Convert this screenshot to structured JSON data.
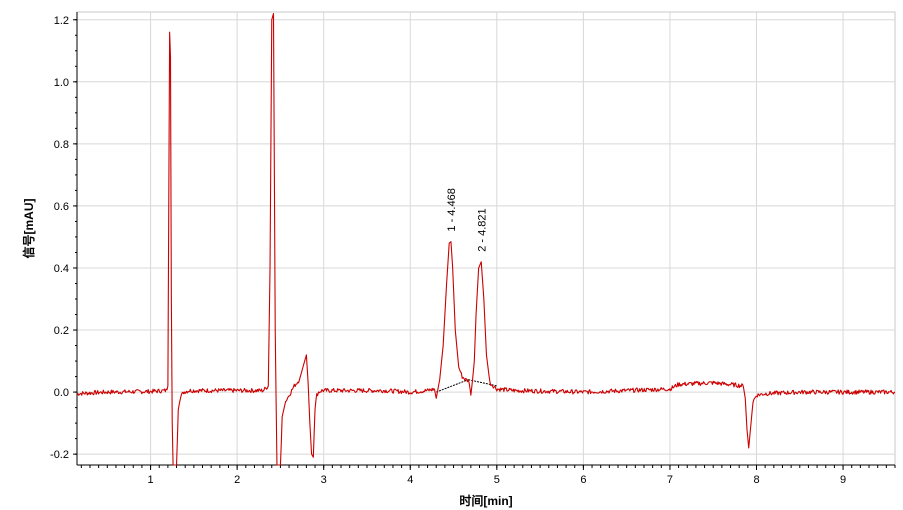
{
  "chart_data": {
    "type": "line",
    "xlabel": "时间[min]",
    "ylabel": "信号[mAU]",
    "xlim": [
      0.15,
      9.6
    ],
    "ylim": [
      -0.235,
      1.225
    ],
    "x_ticks": [
      "1",
      "2",
      "3",
      "4",
      "5",
      "6",
      "7",
      "8",
      "9"
    ],
    "y_ticks": [
      "-0.2",
      "0.0",
      "0.2",
      "0.4",
      "0.6",
      "0.8",
      "1.0",
      "1.2"
    ],
    "grid": true,
    "legend": "none",
    "series": [
      {
        "color": "#cc0000",
        "x": [
          0.15,
          0.5,
          1.0,
          1.18,
          1.2,
          1.22,
          1.23,
          1.24,
          1.25,
          1.26,
          1.27,
          1.28,
          1.3,
          1.32,
          1.34,
          1.36,
          1.38,
          1.45,
          1.6,
          2.0,
          2.3,
          2.36,
          2.38,
          2.4,
          2.42,
          2.44,
          2.46,
          2.48,
          2.5,
          2.52,
          2.56,
          2.6,
          2.66,
          2.72,
          2.78,
          2.8,
          2.82,
          2.84,
          2.86,
          2.88,
          2.9,
          2.92,
          2.94,
          2.98,
          3.05,
          3.3,
          3.7,
          4.0,
          4.2,
          4.28,
          4.3,
          4.34,
          4.38,
          4.42,
          4.45,
          4.47,
          4.49,
          4.52,
          4.56,
          4.6,
          4.64,
          4.68,
          4.7,
          4.72,
          4.74,
          4.76,
          4.79,
          4.82,
          4.85,
          4.88,
          4.92,
          4.96,
          5.0,
          5.2,
          5.6,
          6.0,
          6.5,
          7.0,
          7.1,
          7.5,
          7.85,
          7.87,
          7.89,
          7.91,
          7.93,
          7.96,
          8.0,
          8.1,
          8.5,
          9.0,
          9.6
        ],
        "y": [
          -0.005,
          0.0,
          0.002,
          0.005,
          0.02,
          1.16,
          1.08,
          0.3,
          -0.1,
          -0.25,
          -0.25,
          -0.25,
          -0.25,
          -0.05,
          -0.02,
          -0.01,
          0.0,
          0.005,
          0.005,
          0.005,
          0.005,
          0.02,
          0.4,
          1.2,
          1.22,
          0.2,
          -0.25,
          -0.25,
          -0.25,
          -0.08,
          -0.03,
          -0.01,
          0.02,
          0.04,
          0.1,
          0.12,
          0.03,
          -0.1,
          -0.2,
          -0.21,
          -0.05,
          -0.01,
          0.0,
          0.005,
          0.005,
          0.005,
          0.005,
          0.0,
          0.005,
          0.01,
          -0.02,
          0.04,
          0.15,
          0.35,
          0.48,
          0.485,
          0.4,
          0.2,
          0.08,
          0.05,
          0.04,
          0.035,
          -0.01,
          0.04,
          0.1,
          0.25,
          0.4,
          0.42,
          0.3,
          0.12,
          0.03,
          0.02,
          0.01,
          0.005,
          0.003,
          0.0,
          0.005,
          0.01,
          0.025,
          0.03,
          0.02,
          -0.02,
          -0.12,
          -0.18,
          -0.12,
          -0.03,
          -0.01,
          -0.005,
          0.0,
          0.0,
          0.0
        ]
      }
    ],
    "annotations": [
      {
        "label": "1 - 4.468",
        "x": 4.468,
        "y": 0.485
      },
      {
        "label": "2 - 4.821",
        "x": 4.821,
        "y": 0.42
      }
    ],
    "baseline_segments": [
      {
        "x": [
          4.3,
          4.67
        ],
        "y": [
          0.0,
          0.04
        ]
      },
      {
        "x": [
          4.67,
          5.0
        ],
        "y": [
          0.04,
          0.02
        ]
      }
    ]
  }
}
